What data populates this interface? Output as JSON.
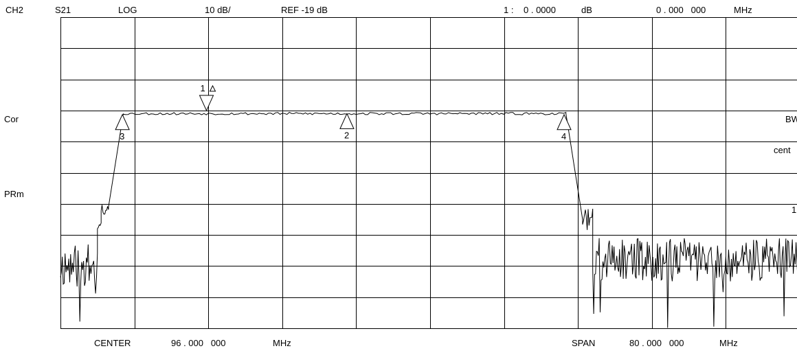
{
  "header": {
    "channel": "CH2",
    "parameter": "S21",
    "format": "LOG",
    "scale": "10 dB/",
    "reference": "REF -19 dB",
    "marker_readout_label": "1 :",
    "marker_readout_value": "0 . 0000",
    "marker_readout_unit": "dB",
    "marker_freq_value": "0 . 000   000",
    "marker_freq_unit": "MHz"
  },
  "side_labels": {
    "cor": "Cor",
    "prm": "PRm"
  },
  "right_annotations": {
    "bw": "BW",
    "cent": "cent",
    "one": "1"
  },
  "footer": {
    "center_label": "CENTER",
    "center_value": "96 . 000   000",
    "center_unit": "MHz",
    "span_label": "SPAN",
    "span_value": "80 . 000   000",
    "span_unit": "MHz"
  },
  "chart_data": {
    "type": "line",
    "x_center_mhz": 96,
    "x_span_mhz": 80,
    "xlim": [
      56,
      136
    ],
    "y_ref_db": -19,
    "y_scale_db_per_div": 10,
    "ylim": [
      -88,
      12
    ],
    "grid": true,
    "divisions_x": 10,
    "divisions_y": 10,
    "passband_level_db": -19,
    "markers": [
      {
        "label": "1",
        "x": 71.8,
        "y": -18.0,
        "direction": "down",
        "delta": true
      },
      {
        "label": "2",
        "x": 87.0,
        "y": -19.0,
        "direction": "up"
      },
      {
        "label": "3",
        "x": 62.7,
        "y": -19.3,
        "direction": "up"
      },
      {
        "label": "4",
        "x": 110.5,
        "y": -19.3,
        "direction": "up"
      }
    ],
    "trace_segments": [
      {
        "x0": 56.0,
        "x1": 60.0,
        "base": -68,
        "noise": 14,
        "seed": 11,
        "step": 0.1
      },
      {
        "x0": 60.0,
        "x1": 60.4,
        "base": -55,
        "noise": 4,
        "seed": 23,
        "step": 0.1
      },
      {
        "x0": 60.4,
        "x1": 61.2,
        "base": -49,
        "noise": 5,
        "seed": 37,
        "step": 0.1
      },
      {
        "x0": 61.2,
        "x1": 62.8,
        "base": -20,
        "noise": 0,
        "seed": 1,
        "step": 0.4
      },
      {
        "x0": 62.8,
        "x1": 110.7,
        "base": -19,
        "noise": 0.8,
        "seed": 53,
        "step": 0.25
      },
      {
        "x0": 110.7,
        "x1": 112.5,
        "base": -30,
        "noise": 0,
        "seed": 1,
        "step": 0.45
      },
      {
        "x0": 112.5,
        "x1": 113.6,
        "base": -53,
        "noise": 7,
        "seed": 71,
        "step": 0.1
      },
      {
        "x0": 113.6,
        "x1": 136.0,
        "base": -66,
        "noise": 14,
        "seed": 89,
        "step": 0.1
      }
    ]
  }
}
